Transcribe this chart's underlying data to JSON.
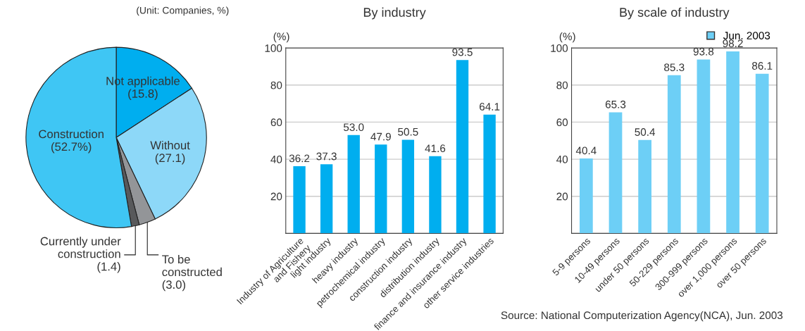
{
  "chart_data": [
    {
      "type": "pie",
      "categories": [
        "Not applicable",
        "Without",
        "To be\nconstructed",
        "Currently under\nconstruction",
        "Construction"
      ],
      "values": [
        15.8,
        27.1,
        3.0,
        1.4,
        52.7
      ],
      "value_labels": [
        "(15.8)",
        "(27.1)",
        "(3.0)",
        "(1.4)",
        "(52.7%)"
      ],
      "colors": [
        "#00aeef",
        "#8dd8f8",
        "#939598",
        "#58595b",
        "#3fc6f4"
      ],
      "annotations": [
        "(Unit: Companies, %)"
      ]
    },
    {
      "type": "bar",
      "title": "By industry",
      "ylabel": "(%)",
      "categories": [
        "Industry of Agriculture\nand Fishery",
        "light industry",
        "heavy industry",
        "petrochemical industry",
        "construction industry",
        "distribution industry",
        "finance and insurance industry",
        "other service industries"
      ],
      "values": [
        36.2,
        37.3,
        53.0,
        47.9,
        50.5,
        41.6,
        93.5,
        64.1
      ],
      "value_labels": [
        "36.2",
        "37.3",
        "53.0",
        "47.9",
        "50.5",
        "41.6",
        "93.5",
        "64.1"
      ],
      "color": "#00aeef",
      "ylim": [
        0,
        100
      ],
      "yticks": [
        {
          "value": 0,
          "label": null
        },
        20,
        40,
        60,
        80,
        100
      ],
      "grid": "y"
    },
    {
      "type": "bar",
      "title": "By scale of industry",
      "ylabel": "(%)",
      "categories": [
        "5-9 persons",
        "10-49 persons",
        "under 50 persons",
        "50-229 persons",
        "300-999 persons",
        "over 1,000 persons",
        "over 50 persons"
      ],
      "series": [
        {
          "name": "Jun. 2003",
          "color": "#6dcff6",
          "values": [
            40.4,
            65.3,
            50.4,
            85.3,
            93.8,
            98.2,
            86.1
          ]
        }
      ],
      "ylim": [
        0,
        100
      ],
      "yticks": [
        {
          "value": 0,
          "label": null
        },
        20,
        40,
        60,
        80,
        100
      ],
      "grid": "y",
      "data_labels": true,
      "legend": "top right",
      "annotations": [
        "Source: National Computerization Agency(NCA), Jun. 2003"
      ]
    }
  ]
}
